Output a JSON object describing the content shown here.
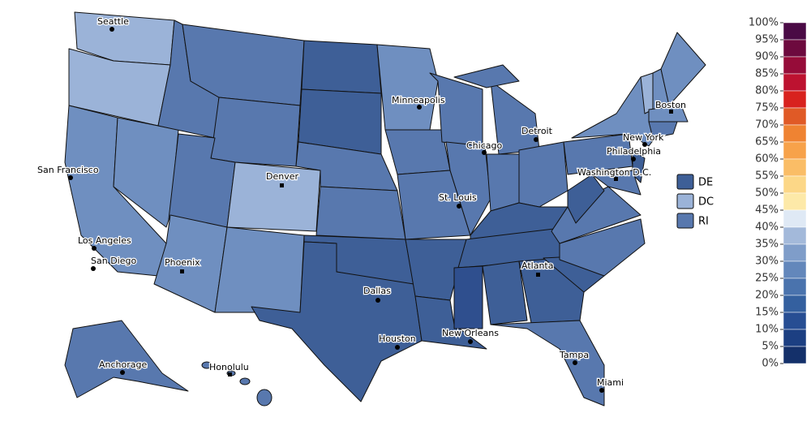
{
  "cities": [
    "Seattle",
    "Minneapolis",
    "Boston",
    "Detroit",
    "Chicago",
    "New York",
    "Philadelphia",
    "Washington D.C.",
    "San Francisco",
    "Denver",
    "St. Louis",
    "Los Angeles",
    "San Diego",
    "Phoenix",
    "Atlanta",
    "Dallas",
    "Houston",
    "New Orleans",
    "Tampa",
    "Miami",
    "Anchorage",
    "Honolulu"
  ],
  "legend": [
    {
      "label": "DE",
      "color": "#3e5f97"
    },
    {
      "label": "DC",
      "color": "#9bb3d8"
    },
    {
      "label": "RI",
      "color": "#5878ae"
    }
  ],
  "scale": {
    "labels": [
      "100%",
      "95%",
      "90%",
      "85%",
      "80%",
      "75%",
      "70%",
      "65%",
      "60%",
      "55%",
      "50%",
      "45%",
      "40%",
      "35%",
      "30%",
      "25%",
      "20%",
      "15%",
      "10%",
      "5%",
      "0%"
    ],
    "colors": [
      "#4a0a45",
      "#6d0a3e",
      "#960c39",
      "#bd1230",
      "#d8221e",
      "#e05a26",
      "#ef8332",
      "#f7a24a",
      "#fabd66",
      "#fcd787",
      "#fde9a8",
      "#dfe9f5",
      "#a3b9da",
      "#7f9dc9",
      "#6387bb",
      "#4a73ad",
      "#34609f",
      "#274e93",
      "#1c3f82",
      "#14306a"
    ]
  }
}
